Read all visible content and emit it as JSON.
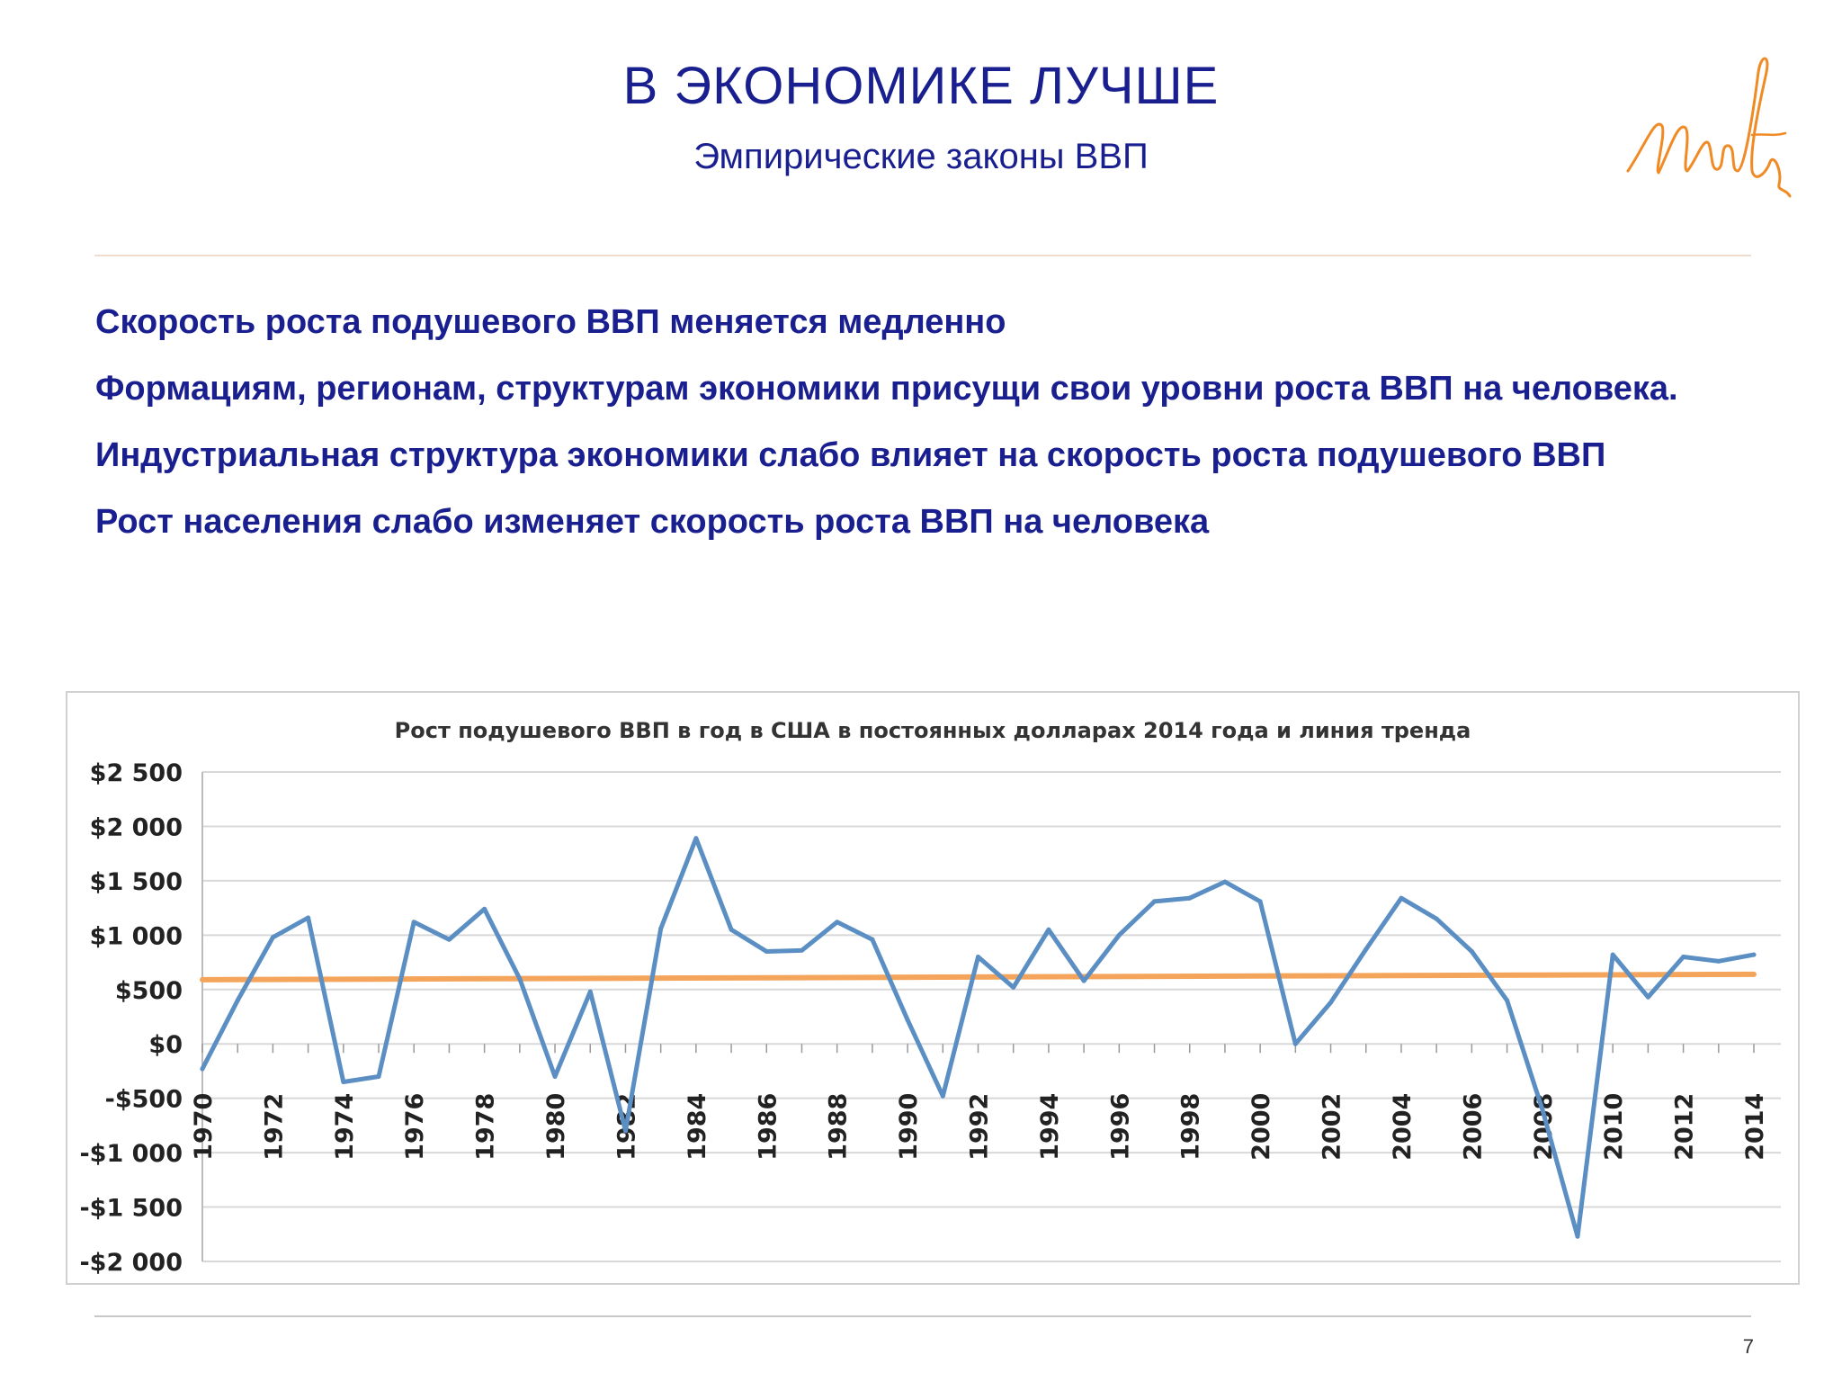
{
  "slide": {
    "title": "В ЭКОНОМИКЕ ЛУЧШЕ",
    "subtitle": "Эмпирические законы ВВП",
    "bullets": [
      "Скорость роста подушевого ВВП меняется медленно",
      "Формациям, регионам, структурам экономики присущи свои уровни роста ВВП на человека.",
      "Индустриальная структура экономики слабо влияет на скорость роста подушевого ВВП",
      "Рост населения слабо изменяет скорость роста ВВП на человека"
    ],
    "page_number": "7"
  },
  "colors": {
    "title": "#1a1f8f",
    "logo": "#f08a24",
    "series": "#5b8fc4",
    "trend": "#f5a55b",
    "grid": "#d8d8d8"
  },
  "chart_data": {
    "type": "line",
    "title": "Рост подушевого ВВП в год в США в постоянных долларах 2014 года и линия тренда",
    "xlabel": "",
    "ylabel": "",
    "ylim": [
      -2000,
      2500
    ],
    "yticks": [
      2500,
      2000,
      1500,
      1000,
      500,
      0,
      -500,
      -1000,
      -1500,
      -2000
    ],
    "ytick_labels": [
      "$2 500",
      "$2 000",
      "$1 500",
      "$1 000",
      "$500",
      "$0",
      "-$500",
      "-$1 000",
      "-$1 500",
      "-$2 000"
    ],
    "x": [
      1970,
      1971,
      1972,
      1973,
      1974,
      1975,
      1976,
      1977,
      1978,
      1979,
      1980,
      1981,
      1982,
      1983,
      1984,
      1985,
      1986,
      1987,
      1988,
      1989,
      1990,
      1991,
      1992,
      1993,
      1994,
      1995,
      1996,
      1997,
      1998,
      1999,
      2000,
      2001,
      2002,
      2003,
      2004,
      2005,
      2006,
      2007,
      2008,
      2009,
      2010,
      2011,
      2012,
      2013,
      2014
    ],
    "xtick_labels": [
      "1970",
      "1972",
      "1974",
      "1976",
      "1978",
      "1980",
      "1982",
      "1984",
      "1986",
      "1988",
      "1990",
      "1992",
      "1994",
      "1996",
      "1998",
      "2000",
      "2002",
      "2004",
      "2006",
      "2008",
      "2010",
      "2012",
      "2014"
    ],
    "series": [
      {
        "values": [
          -230,
          400,
          980,
          1160,
          -350,
          -300,
          1120,
          960,
          1240,
          600,
          -300,
          480,
          -800,
          1060,
          1890,
          1050,
          850,
          860,
          1120,
          960,
          220,
          -480,
          800,
          520,
          1050,
          580,
          1000,
          1310,
          1340,
          1490,
          1310,
          0,
          380,
          870,
          1340,
          1150,
          850,
          400,
          -600,
          -1770,
          820,
          430,
          800,
          760,
          820
        ]
      }
    ],
    "trend": {
      "start": [
        1970,
        590
      ],
      "end": [
        2014,
        640
      ]
    },
    "grid": true,
    "legend": "none"
  }
}
